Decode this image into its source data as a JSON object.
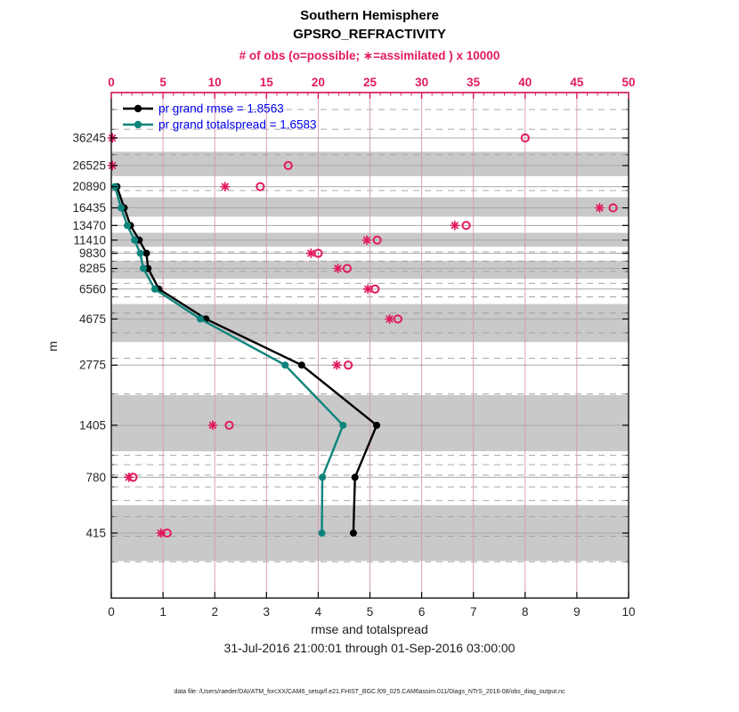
{
  "title": {
    "line1": "Southern Hemisphere",
    "line2": "GPSRO_REFRACTIVITY"
  },
  "axes": {
    "top": {
      "label": "# of obs (o=possible; ∗=assimilated ) x 10000",
      "ticks": [
        0,
        5,
        10,
        15,
        20,
        25,
        30,
        35,
        40,
        45,
        50
      ],
      "range": [
        0,
        50
      ]
    },
    "bottom": {
      "label": "rmse and totalspread",
      "ticks": [
        0,
        1,
        2,
        3,
        4,
        5,
        6,
        7,
        8,
        9,
        10
      ],
      "range": [
        0,
        10
      ]
    },
    "left": {
      "label": "m"
    }
  },
  "legend": [
    {
      "label": "pr grand rmse = 1.8563",
      "color": "#000000"
    },
    {
      "label": "pr grand totalspread = 1.6583",
      "color": "#0d857c"
    }
  ],
  "caption": "31-Jul-2016 21:00:01 through 01-Sep-2016 03:00:00",
  "footer": "data file: /Users/raeder/DAI/ATM_forcXX/CAM6_setup/f.e21.FHIST_BGC.f09_025.CAM6assim.011/Diags_NTrS_2016-08/obs_diag_output.nc",
  "colors": {
    "pink": "#e11a5e",
    "pink_grid": "#d697ab",
    "teal": "#0d857c",
    "black": "#000000",
    "band": "#c9c9c9",
    "dash_grid": "#9e9e9e",
    "level_line": "#a8a8a8",
    "legend_text": "#0000ee"
  },
  "chart_data": {
    "type": "line",
    "title": "Southern Hemisphere GPSRO_REFRACTIVITY",
    "xlabel_bottom": "rmse and totalspread",
    "xlabel_top": "# of obs (o=possible; ∗=assimilated ) x 10000",
    "ylabel": "m",
    "xlim_bottom": [
      0,
      10
    ],
    "xlim_top": [
      0,
      50
    ],
    "yscale": "log",
    "ylim_m": [
      200,
      60500
    ],
    "grid": "on",
    "legend_position": "top-left-inside",
    "y_levels_m": [
      36245,
      26525,
      20890,
      16435,
      13470,
      11410,
      9830,
      8285,
      6560,
      4675,
      2775,
      1405,
      780,
      415
    ],
    "series": [
      {
        "name": "pr grand rmse",
        "summary_value": 1.8563,
        "axis": "bottom",
        "style": "line-dot",
        "color": "#000000",
        "levels_m": [
          20890,
          16435,
          13470,
          11410,
          9830,
          8285,
          6560,
          4675,
          2775,
          1405,
          780,
          415
        ],
        "values": [
          0.11,
          0.25,
          0.37,
          0.54,
          0.68,
          0.71,
          0.92,
          1.83,
          3.68,
          5.13,
          4.71,
          4.68
        ]
      },
      {
        "name": "pr grand totalspread",
        "summary_value": 1.6583,
        "axis": "bottom",
        "style": "line-dot",
        "color": "#0d857c",
        "levels_m": [
          20890,
          16435,
          13470,
          11410,
          9830,
          8285,
          6560,
          4675,
          2775,
          1405,
          780,
          415
        ],
        "values": [
          0.07,
          0.19,
          0.31,
          0.45,
          0.56,
          0.62,
          0.84,
          1.72,
          3.36,
          4.48,
          4.08,
          4.07
        ]
      },
      {
        "name": "possible obs (o) x 10000",
        "axis": "top",
        "style": "open-circle",
        "color": "#e11a5e",
        "levels_m": [
          36245,
          26525,
          20890,
          16435,
          13470,
          11410,
          9830,
          8285,
          6560,
          4675,
          2775,
          1405,
          780,
          415
        ],
        "values": [
          40.0,
          17.1,
          14.4,
          48.5,
          34.3,
          25.7,
          20.0,
          22.8,
          25.5,
          27.7,
          22.9,
          11.4,
          2.1,
          5.4
        ]
      },
      {
        "name": "assimilated obs (*) x 10000",
        "axis": "top",
        "style": "asterisk",
        "color": "#e11a5e",
        "levels_m": [
          36245,
          26525,
          20890,
          16435,
          13470,
          11410,
          9830,
          8285,
          6560,
          4675,
          2775,
          1405,
          780,
          415
        ],
        "values": [
          0.1,
          0.1,
          11.0,
          47.2,
          33.2,
          24.7,
          19.3,
          21.9,
          24.8,
          26.9,
          21.8,
          9.8,
          1.7,
          4.8
        ]
      }
    ]
  }
}
